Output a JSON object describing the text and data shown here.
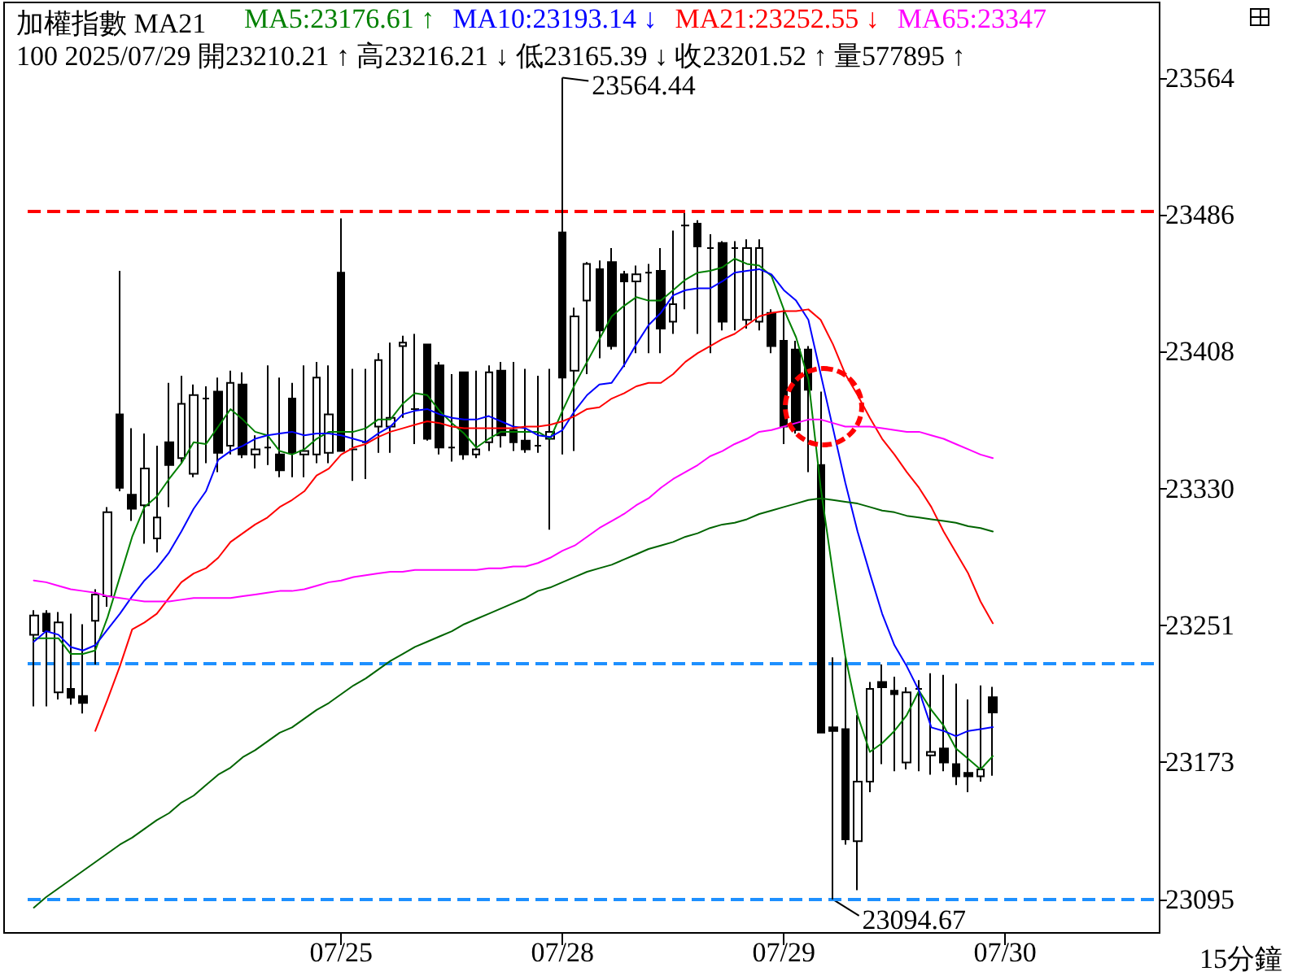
{
  "chart_data": {
    "type": "candlestick",
    "title": "加權指數 MA21",
    "subtitle": "100 2025/07/29 開23210.21 ↑ 高23216.21 ↓ 低23165.39 ↓ 收23201.52 ↑ 量577895 ↑",
    "categories": [
      null,
      null,
      null,
      null,
      null,
      null,
      null,
      null,
      null,
      null,
      null,
      null,
      null,
      null,
      null,
      null,
      null,
      null,
      null,
      null,
      null,
      null,
      null,
      null,
      null,
      "07/25",
      null,
      null,
      null,
      null,
      null,
      null,
      null,
      null,
      null,
      null,
      null,
      null,
      null,
      null,
      null,
      null,
      null,
      "07/28",
      null,
      null,
      null,
      null,
      null,
      null,
      null,
      null,
      null,
      null,
      null,
      null,
      null,
      null,
      null,
      null,
      null,
      "07/29",
      null,
      null,
      null,
      null,
      null,
      null,
      null,
      null,
      null,
      null,
      null,
      null,
      null,
      null,
      null,
      null,
      null,
      "07/30",
      null,
      null,
      null,
      null,
      null,
      null,
      null,
      null,
      null,
      null,
      null,
      null
    ],
    "ohlc": [
      [
        23246,
        23260,
        23205,
        23257
      ],
      [
        23258,
        23260,
        23205,
        23248
      ],
      [
        23213,
        23259,
        23209,
        23253
      ],
      [
        23215,
        23258,
        23206,
        23210
      ],
      [
        23211,
        23252,
        23201,
        23207
      ],
      [
        23254,
        23272,
        23229,
        23269
      ],
      [
        23268,
        23319,
        23262,
        23316
      ],
      [
        23372,
        23454,
        23328,
        23330
      ],
      [
        23326,
        23364,
        23311,
        23318
      ],
      [
        23320,
        23361,
        23298,
        23341
      ],
      [
        23301,
        23354,
        23293,
        23313
      ],
      [
        23356,
        23390,
        23319,
        23343
      ],
      [
        23347,
        23394,
        23344,
        23378
      ],
      [
        23338,
        23389,
        23336,
        23383
      ],
      [
        23381,
        23388,
        23344,
        23381
      ],
      [
        23385,
        23393,
        23339,
        23350
      ],
      [
        23354,
        23397,
        23349,
        23390
      ],
      [
        23389,
        23396,
        23347,
        23349
      ],
      [
        23349,
        23360,
        23341,
        23352
      ],
      [
        23353,
        23400,
        23343,
        23353
      ],
      [
        23349,
        23393,
        23336,
        23340
      ],
      [
        23381,
        23390,
        23336,
        23350
      ],
      [
        23349,
        23400,
        23336,
        23351
      ],
      [
        23349,
        23402,
        23344,
        23393
      ],
      [
        23350,
        23400,
        23344,
        23372
      ],
      [
        23453,
        23484,
        23351,
        23351
      ],
      [
        23352,
        23398,
        23334,
        23352
      ],
      [
        23356,
        23398,
        23335,
        23356
      ],
      [
        23365,
        23407,
        23350,
        23403
      ],
      [
        23365,
        23413,
        23350,
        23370
      ],
      [
        23411,
        23417,
        23370,
        23413
      ],
      [
        23375,
        23418,
        23355,
        23375
      ],
      [
        23412,
        23412,
        23357,
        23358
      ],
      [
        23400,
        23402,
        23349,
        23353
      ],
      [
        23353,
        23395,
        23345,
        23353
      ],
      [
        23396,
        23396,
        23346,
        23349
      ],
      [
        23349,
        23397,
        23347,
        23352
      ],
      [
        23356,
        23400,
        23351,
        23396
      ],
      [
        23397,
        23402,
        23353,
        23360
      ],
      [
        23363,
        23402,
        23351,
        23356
      ],
      [
        23357,
        23398,
        23350,
        23352
      ],
      [
        23354,
        23394,
        23350,
        23354
      ],
      [
        23358,
        23398,
        23306,
        23362
      ],
      [
        23476,
        23564.44,
        23349,
        23393
      ],
      [
        23397,
        23433,
        23351,
        23428
      ],
      [
        23437,
        23459,
        23395,
        23458
      ],
      [
        23455,
        23460,
        23404,
        23420
      ],
      [
        23459,
        23467,
        23409,
        23411
      ],
      [
        23452,
        23454,
        23399,
        23448
      ],
      [
        23448,
        23457,
        23407,
        23452
      ],
      [
        23453,
        23458,
        23407,
        23453
      ],
      [
        23454,
        23467,
        23407,
        23421
      ],
      [
        23425,
        23477,
        23418,
        23435
      ],
      [
        23480,
        23487,
        23432,
        23480
      ],
      [
        23481,
        23483,
        23418,
        23468
      ],
      [
        23467,
        23475,
        23407,
        23467
      ],
      [
        23470,
        23471,
        23420,
        23425
      ],
      [
        23467,
        23471,
        23420,
        23467
      ],
      [
        23426,
        23472,
        23421,
        23467
      ],
      [
        23425,
        23472,
        23420,
        23467
      ],
      [
        23430,
        23432,
        23407,
        23411
      ],
      [
        23414,
        23432,
        23355,
        23365
      ],
      [
        23409,
        23414,
        23361,
        23363
      ],
      [
        23409,
        23411,
        23339,
        23386
      ],
      [
        23343,
        23385,
        23190,
        23190
      ],
      [
        23193,
        23233,
        23094.67,
        23191
      ],
      [
        23192,
        23233,
        23126,
        23129
      ],
      [
        23128,
        23200,
        23100,
        23162
      ],
      [
        23162,
        23219,
        23156,
        23215
      ],
      [
        23219,
        23229,
        23172,
        23216
      ],
      [
        23214,
        23222,
        23168,
        23212
      ],
      [
        23173,
        23216,
        23169,
        23213
      ],
      [
        23215,
        23220,
        23168,
        23215
      ],
      [
        23177,
        23224,
        23166,
        23179
      ],
      [
        23181,
        23223,
        23168,
        23173
      ],
      [
        23172,
        23218,
        23160,
        23165
      ],
      [
        23167,
        23209,
        23156,
        23165
      ],
      [
        23165,
        23217,
        23162,
        23169
      ],
      [
        23210.21,
        23216.21,
        23165.39,
        23201.52
      ],
      null,
      null,
      null,
      null,
      null,
      null,
      null,
      null,
      null,
      null,
      null,
      null,
      null
    ],
    "series": [
      {
        "type": "line",
        "name": "MA5:23176.61 ↑",
        "color": "#008000",
        "values": [
          23244,
          23244,
          23244,
          23235,
          23235,
          23237,
          23256,
          23279,
          23302,
          23319,
          23325,
          23335,
          23344,
          23356,
          23355,
          23365,
          23375,
          23369,
          23362,
          23360,
          23351,
          23349,
          23352,
          23358,
          23362,
          23362,
          23362,
          23364,
          23369,
          23369,
          23378,
          23384,
          23383,
          23374,
          23367,
          23361,
          23353,
          23358,
          23362,
          23362,
          23362,
          23362,
          23358,
          23374,
          23389,
          23402,
          23415,
          23428,
          23434,
          23439,
          23437,
          23437,
          23443,
          23449,
          23453,
          23454,
          23456,
          23461,
          23458,
          23457,
          23451,
          23432,
          23416,
          23392,
          23330,
          23281,
          23234,
          23200,
          23179,
          23184,
          23191,
          23200,
          23214,
          23203,
          23194,
          23181,
          23175,
          23169,
          23176.61,
          null,
          null,
          null,
          null,
          null,
          null,
          null,
          null,
          null,
          null,
          null,
          null,
          null
        ]
      },
      {
        "type": "line",
        "name": "MA10:23193.14 ↓",
        "color": "#0000ff",
        "values": [
          23242,
          23248,
          23246,
          23239,
          23237,
          23240,
          23249,
          23258,
          23268,
          23277,
          23284,
          23293,
          23305,
          23318,
          23328,
          23346,
          23351,
          23354,
          23358,
          23360,
          23361,
          23362,
          23360,
          23361,
          23361,
          23360,
          23358,
          23356,
          23361,
          23365,
          23372,
          23374,
          23375,
          23372,
          23370,
          23369,
          23369,
          23371,
          23368,
          23365,
          23364,
          23360,
          23359,
          23363,
          23374,
          23383,
          23389,
          23390,
          23400,
          23412,
          23423,
          23430,
          23440,
          23443,
          23444,
          23444,
          23448,
          23453,
          23454,
          23455,
          23452,
          23443,
          23437,
          23426,
          23395,
          23364,
          23333,
          23305,
          23281,
          23258,
          23240,
          23228,
          23214,
          23193,
          23191,
          23188,
          23191,
          23192,
          23193.14,
          null,
          null,
          null,
          null,
          null,
          null,
          null,
          null,
          null,
          null,
          null,
          null,
          null
        ]
      },
      {
        "type": "line",
        "name": "MA21:23252.55 ↓",
        "color": "#ff0000",
        "values": [
          null,
          null,
          null,
          null,
          null,
          23191,
          23209,
          23228,
          23249,
          23253,
          23258,
          23267,
          23276,
          23281,
          23284,
          23290,
          23299,
          23304,
          23309,
          23313,
          23319,
          23323,
          23328,
          23337,
          23341,
          23349,
          23353,
          23355,
          23359,
          23362,
          23364,
          23366,
          23368,
          23367,
          23365,
          23364,
          23364,
          23364,
          23364,
          23364,
          23365,
          23365,
          23366,
          23368,
          23371,
          23375,
          23376,
          23381,
          23384,
          23388,
          23390,
          23390,
          23395,
          23402,
          23407,
          23411,
          23415,
          23418,
          23423,
          23428,
          23430,
          23431,
          23431,
          23432,
          23426,
          23412,
          23395,
          23383,
          23370,
          23358,
          23349,
          23339,
          23330,
          23319,
          23305,
          23293,
          23281,
          23265,
          23252.55,
          null,
          null,
          null,
          null,
          null,
          null,
          null,
          null,
          null,
          null,
          null,
          null,
          null
        ]
      },
      {
        "type": "line",
        "name": "MA65:23347",
        "color": "#ff00ff",
        "values": [
          23277,
          23276,
          23274,
          23272,
          23271,
          23270,
          23268,
          23267,
          23266,
          23265,
          23265,
          23265,
          23266,
          23267,
          23267,
          23267,
          23267,
          23268,
          23269,
          23270,
          23271,
          23271,
          23272,
          23274,
          23276,
          23277,
          23279,
          23280,
          23281,
          23282,
          23282,
          23283,
          23283,
          23283,
          23283,
          23283,
          23283,
          23284,
          23284,
          23285,
          23285,
          23287,
          23290,
          23294,
          23297,
          23302,
          23307,
          23311,
          23315,
          23320,
          23324,
          23330,
          23335,
          23339,
          23343,
          23348,
          23351,
          23355,
          23358,
          23362,
          23363,
          23365,
          23367,
          23369,
          23369,
          23367,
          23365,
          23365,
          23365,
          23364,
          23363,
          23362,
          23362,
          23360,
          23358,
          23355,
          23352,
          23349,
          23347,
          null,
          null,
          null,
          null,
          null,
          null,
          null,
          null,
          null,
          null,
          null,
          null,
          null
        ]
      },
      {
        "type": "line",
        "color": "#006400",
        "values": [
          23090,
          23096,
          23101,
          23106,
          23111,
          23116,
          23121,
          23126,
          23130,
          23135,
          23140,
          23144,
          23150,
          23154,
          23160,
          23166,
          23170,
          23176,
          23180,
          23185,
          23190,
          23193,
          23198,
          23203,
          23207,
          23212,
          23217,
          23221,
          23226,
          23231,
          23235,
          23239,
          23242,
          23245,
          23248,
          23252,
          23255,
          23258,
          23261,
          23264,
          23267,
          23271,
          23273,
          23276,
          23279,
          23282,
          23284,
          23286,
          23289,
          23292,
          23295,
          23297,
          23299,
          23302,
          23304,
          23307,
          23309,
          23310,
          23312,
          23315,
          23317,
          23319,
          23321,
          23323,
          23324,
          23323,
          23322,
          23321,
          23319,
          23317,
          23316,
          23314,
          23313,
          23312,
          23311,
          23310,
          23308,
          23307,
          23305,
          null,
          null,
          null,
          null,
          null,
          null,
          null,
          null,
          null,
          null,
          null,
          null,
          null
        ]
      }
    ],
    "ylim": [
      23076,
      23607
    ],
    "yticks": [
      {
        "value": 23094.67,
        "label": "23095"
      },
      {
        "value": 23172.97,
        "label": "23173"
      },
      {
        "value": 23251.26,
        "label": "23251"
      },
      {
        "value": 23329.56,
        "label": "23330"
      },
      {
        "value": 23407.85,
        "label": "23408"
      },
      {
        "value": 23486.15,
        "label": "23486"
      },
      {
        "value": 23564.44,
        "label": "23564"
      }
    ],
    "ref_lines": [
      {
        "axis": "y",
        "value": 23488,
        "color": "#ff0000",
        "line_style": "dashed"
      },
      {
        "axis": "y",
        "value": 23230,
        "color": "#1e90ff",
        "line_style": "dashed"
      },
      {
        "axis": "y",
        "value": 23094.67,
        "color": "#1e90ff",
        "line_style": "dashed"
      }
    ],
    "annotations": [
      "23564.44",
      "23094.67",
      "15分鐘"
    ],
    "legend": "top left",
    "grid": false,
    "marker": "none",
    "line_style": "solid"
  }
}
